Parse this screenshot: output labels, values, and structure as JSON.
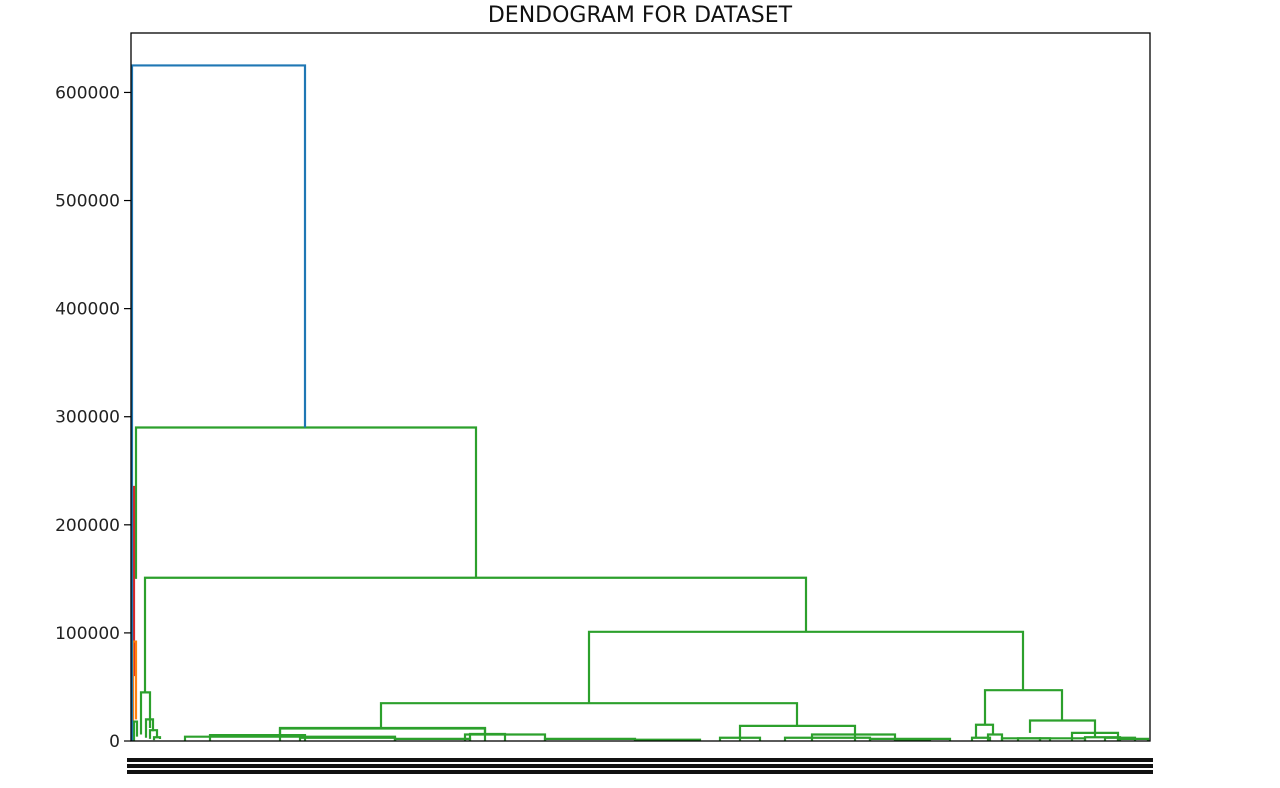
{
  "chart_data": {
    "type": "dendrogram",
    "title": "DENDOGRAM FOR  DATASET",
    "xlabel": "",
    "ylabel": "",
    "ylim": [
      0,
      655000
    ],
    "yticks": [
      {
        "value": 0,
        "label": "0"
      },
      {
        "value": 100000,
        "label": "100000"
      },
      {
        "value": 200000,
        "label": "200000"
      },
      {
        "value": 300000,
        "label": "300000"
      },
      {
        "value": 400000,
        "label": "400000"
      },
      {
        "value": 500000,
        "label": "500000"
      },
      {
        "value": 600000,
        "label": "600000"
      }
    ],
    "grid": false,
    "legend": "none",
    "x_leaf_labels": "dense, illegible",
    "colors": {
      "root": "#1f77b4",
      "cluster_green": "#2ca02c",
      "cluster_red": "#d62728",
      "cluster_orange": "#ff7f0e",
      "frame": "#000000"
    },
    "merges": [
      {
        "id": "root",
        "height": 625000,
        "color": "#1f77b4"
      },
      {
        "id": "g1",
        "height": 290000,
        "color": "#2ca02c"
      },
      {
        "id": "g2",
        "height": 151000,
        "color": "#2ca02c"
      },
      {
        "id": "g3",
        "height": 101000,
        "color": "#2ca02c"
      },
      {
        "id": "g4",
        "height": 35000,
        "color": "#2ca02c"
      },
      {
        "id": "g5",
        "height": 47000,
        "color": "#2ca02c"
      },
      {
        "id": "g6",
        "height": 19000,
        "color": "#2ca02c"
      },
      {
        "id": "g7",
        "height": 14000,
        "color": "#2ca02c"
      },
      {
        "id": "g8",
        "height": 12000,
        "color": "#2ca02c"
      },
      {
        "id": "small",
        "height": 45000,
        "color": "#2ca02c"
      },
      {
        "id": "red",
        "height": 235000,
        "color": "#d62728"
      },
      {
        "id": "orange",
        "height": 92000,
        "color": "#ff7f0e"
      }
    ]
  }
}
